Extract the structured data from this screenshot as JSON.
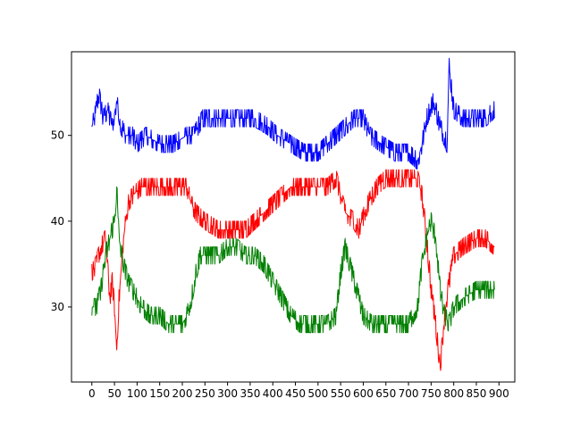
{
  "chart_data": {
    "type": "line",
    "title": "",
    "xlabel": "",
    "ylabel": "",
    "xlim": [
      -45,
      935
    ],
    "ylim": [
      21.25,
      59.75
    ],
    "x_ticks": [
      0,
      50,
      100,
      150,
      200,
      250,
      300,
      350,
      400,
      450,
      500,
      550,
      600,
      650,
      700,
      750,
      800,
      850,
      900
    ],
    "y_ticks": [
      30,
      40,
      50
    ],
    "x_tick_labels": [
      "0",
      "50",
      "100",
      "150",
      "200",
      "250",
      "300",
      "350",
      "400",
      "450",
      "500",
      "550",
      "600",
      "650",
      "700",
      "750",
      "800",
      "850",
      "900"
    ],
    "y_tick_labels": [
      "30",
      "40",
      "50"
    ],
    "grid": false,
    "legend": "none",
    "x_range": [
      0,
      890
    ],
    "series": [
      {
        "color": "#0000ff",
        "points": [
          [
            0,
            51
          ],
          [
            10,
            53
          ],
          [
            15,
            55
          ],
          [
            25,
            52
          ],
          [
            35,
            53
          ],
          [
            45,
            51
          ],
          [
            55,
            54
          ],
          [
            65,
            51
          ],
          [
            75,
            50
          ],
          [
            90,
            50
          ],
          [
            100,
            49
          ],
          [
            120,
            50
          ],
          [
            150,
            49
          ],
          [
            180,
            49
          ],
          [
            210,
            50
          ],
          [
            225,
            50
          ],
          [
            235,
            51
          ],
          [
            245,
            52
          ],
          [
            270,
            52
          ],
          [
            300,
            52
          ],
          [
            330,
            52
          ],
          [
            360,
            52
          ],
          [
            390,
            51
          ],
          [
            410,
            50
          ],
          [
            440,
            49
          ],
          [
            470,
            48
          ],
          [
            500,
            48
          ],
          [
            520,
            49
          ],
          [
            540,
            50
          ],
          [
            560,
            51
          ],
          [
            580,
            52
          ],
          [
            600,
            52
          ],
          [
            615,
            50
          ],
          [
            640,
            49
          ],
          [
            670,
            48
          ],
          [
            700,
            48
          ],
          [
            720,
            47
          ],
          [
            730,
            49
          ],
          [
            740,
            52
          ],
          [
            755,
            54
          ],
          [
            770,
            51
          ],
          [
            785,
            49
          ],
          [
            790,
            58
          ],
          [
            800,
            53
          ],
          [
            820,
            52
          ],
          [
            850,
            52
          ],
          [
            870,
            52
          ],
          [
            890,
            53
          ]
        ]
      },
      {
        "color": "#ff0000",
        "points": [
          [
            0,
            34
          ],
          [
            10,
            35
          ],
          [
            20,
            37
          ],
          [
            30,
            38
          ],
          [
            40,
            31
          ],
          [
            45,
            33
          ],
          [
            50,
            30
          ],
          [
            55,
            25
          ],
          [
            60,
            31
          ],
          [
            70,
            38
          ],
          [
            80,
            42
          ],
          [
            90,
            43
          ],
          [
            110,
            44
          ],
          [
            150,
            44
          ],
          [
            180,
            44
          ],
          [
            200,
            44
          ],
          [
            210,
            44
          ],
          [
            220,
            42
          ],
          [
            230,
            41
          ],
          [
            250,
            40
          ],
          [
            280,
            39
          ],
          [
            300,
            39
          ],
          [
            320,
            39
          ],
          [
            340,
            39
          ],
          [
            360,
            40
          ],
          [
            380,
            41
          ],
          [
            400,
            42
          ],
          [
            420,
            43
          ],
          [
            440,
            44
          ],
          [
            470,
            44
          ],
          [
            500,
            44
          ],
          [
            520,
            44
          ],
          [
            540,
            45
          ],
          [
            560,
            41
          ],
          [
            580,
            40
          ],
          [
            590,
            39
          ],
          [
            610,
            42
          ],
          [
            630,
            44
          ],
          [
            650,
            45
          ],
          [
            680,
            45
          ],
          [
            700,
            45
          ],
          [
            720,
            45
          ],
          [
            730,
            43
          ],
          [
            740,
            38
          ],
          [
            750,
            32
          ],
          [
            760,
            28
          ],
          [
            770,
            23
          ],
          [
            780,
            29
          ],
          [
            790,
            33
          ],
          [
            800,
            36
          ],
          [
            820,
            37
          ],
          [
            850,
            38
          ],
          [
            870,
            38
          ],
          [
            890,
            37
          ]
        ]
      },
      {
        "color": "#008000",
        "points": [
          [
            0,
            30
          ],
          [
            10,
            30
          ],
          [
            20,
            32
          ],
          [
            30,
            36
          ],
          [
            40,
            38
          ],
          [
            50,
            40
          ],
          [
            55,
            44
          ],
          [
            60,
            38
          ],
          [
            70,
            35
          ],
          [
            80,
            33
          ],
          [
            90,
            32
          ],
          [
            100,
            31
          ],
          [
            110,
            30
          ],
          [
            130,
            29
          ],
          [
            150,
            29
          ],
          [
            170,
            28
          ],
          [
            190,
            28
          ],
          [
            200,
            28
          ],
          [
            210,
            29
          ],
          [
            220,
            31
          ],
          [
            230,
            34
          ],
          [
            240,
            36
          ],
          [
            260,
            36
          ],
          [
            280,
            36
          ],
          [
            300,
            37
          ],
          [
            320,
            37
          ],
          [
            340,
            36
          ],
          [
            360,
            36
          ],
          [
            380,
            35
          ],
          [
            400,
            33
          ],
          [
            420,
            31
          ],
          [
            440,
            29
          ],
          [
            460,
            28
          ],
          [
            480,
            28
          ],
          [
            500,
            28
          ],
          [
            520,
            28
          ],
          [
            540,
            29
          ],
          [
            550,
            34
          ],
          [
            560,
            37
          ],
          [
            570,
            35
          ],
          [
            580,
            33
          ],
          [
            590,
            31
          ],
          [
            600,
            29
          ],
          [
            620,
            28
          ],
          [
            640,
            28
          ],
          [
            660,
            28
          ],
          [
            680,
            28
          ],
          [
            700,
            28
          ],
          [
            720,
            30
          ],
          [
            730,
            35
          ],
          [
            740,
            38
          ],
          [
            750,
            40
          ],
          [
            760,
            38
          ],
          [
            770,
            32
          ],
          [
            780,
            29
          ],
          [
            790,
            28
          ],
          [
            800,
            30
          ],
          [
            820,
            31
          ],
          [
            850,
            32
          ],
          [
            870,
            32
          ],
          [
            890,
            32
          ]
        ]
      }
    ]
  }
}
